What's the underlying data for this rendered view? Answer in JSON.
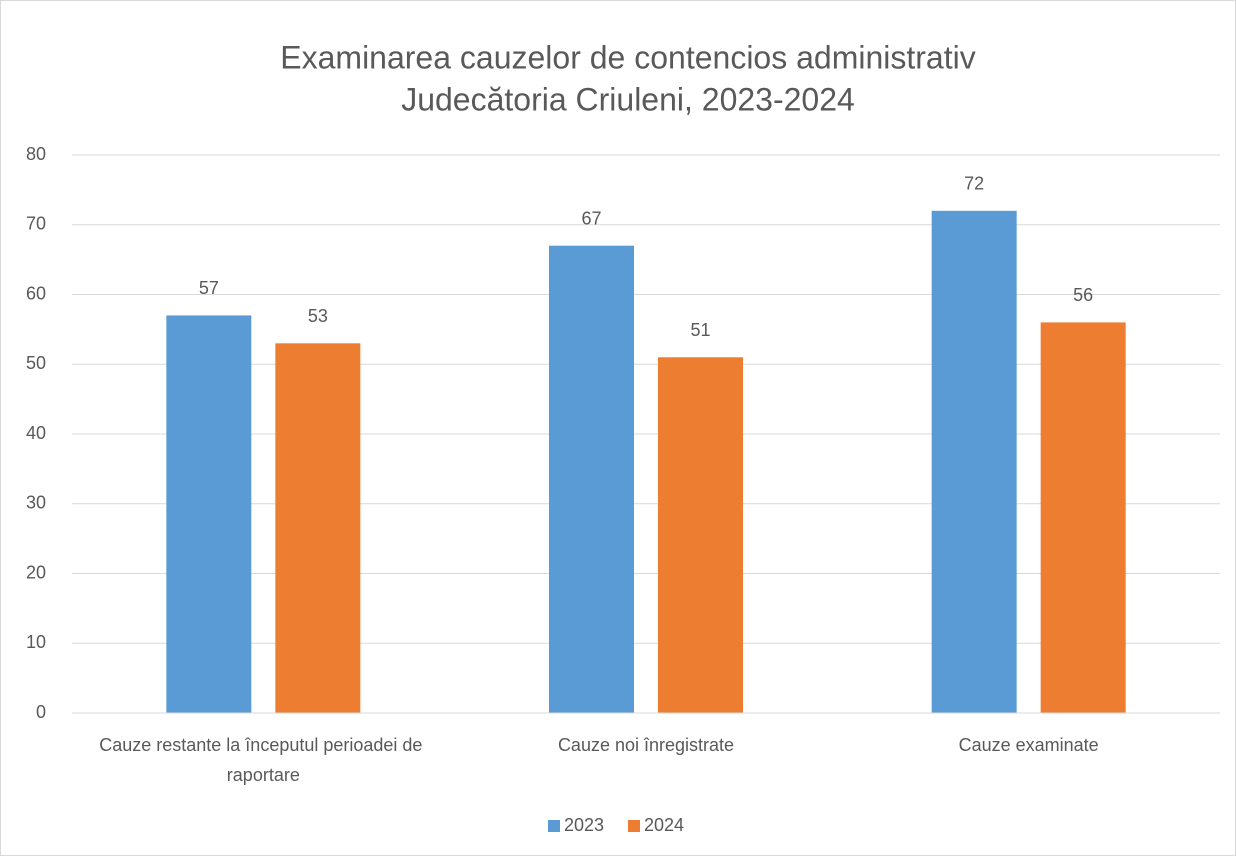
{
  "chart_data": {
    "type": "bar",
    "title": [
      "Examinarea cauzelor de contencios administrativ",
      "Judecătoria Criuleni, 2023-2024"
    ],
    "categories": [
      "Cauze restante la începutul perioadei de raportare",
      "Cauze noi înregistrate",
      "Cauze examinate"
    ],
    "series": [
      {
        "name": "2023",
        "color": "#5b9bd5",
        "values": [
          57,
          67,
          72
        ]
      },
      {
        "name": "2024",
        "color": "#ed7d31",
        "values": [
          53,
          51,
          56
        ]
      }
    ],
    "ylim": [
      0,
      80
    ],
    "yticks": [
      0,
      10,
      20,
      30,
      40,
      50,
      60,
      70,
      80
    ],
    "grid": true,
    "legend": "bottom"
  }
}
